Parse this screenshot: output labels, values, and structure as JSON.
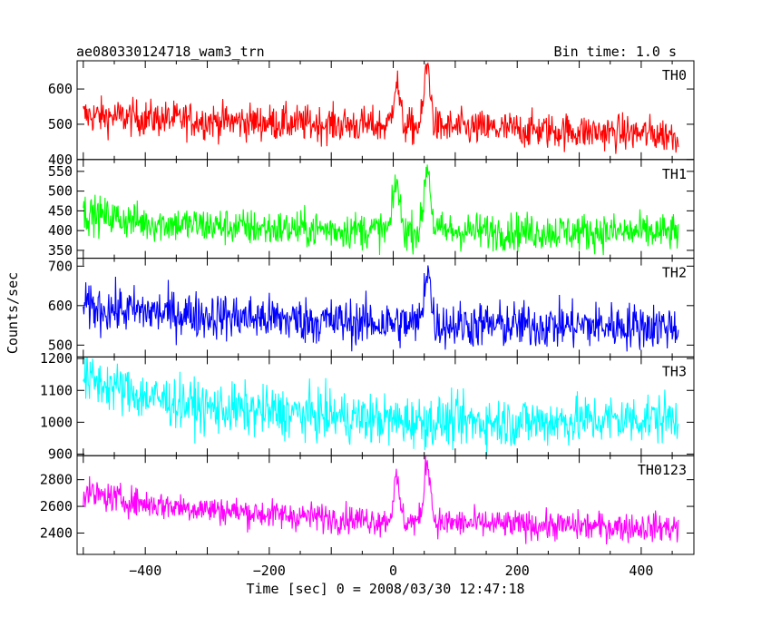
{
  "header": {
    "title": "ae080330124718_wam3_trn",
    "bin_time": "Bin time: 1.0 s"
  },
  "chart_data": {
    "type": "line",
    "xlabel": "Time [sec] 0 = 2008/03/30 12:47:18",
    "ylabel": "Counts/sec",
    "xlim": [
      -510,
      485
    ],
    "x_ticks": [
      -400,
      -200,
      0,
      200,
      400
    ],
    "x_tick_labels": [
      "−400",
      "−200",
      "0",
      "200",
      "400"
    ],
    "x_range": [
      -500,
      460
    ],
    "panels": [
      {
        "name": "TH0",
        "color": "#ff0000",
        "ylim": [
          400,
          680
        ],
        "ticks": [
          400,
          500,
          600
        ],
        "baseline": [
          [
            -500,
            525
          ],
          [
            -300,
            510
          ],
          [
            -100,
            500
          ],
          [
            0,
            495
          ],
          [
            200,
            485
          ],
          [
            460,
            470
          ]
        ],
        "noise": 26,
        "peaks": [
          [
            5,
            620
          ],
          [
            55,
            665
          ]
        ]
      },
      {
        "name": "TH1",
        "color": "#00ff00",
        "ylim": [
          330,
          580
        ],
        "ticks": [
          350,
          400,
          450,
          500,
          550
        ],
        "baseline": [
          [
            -500,
            445
          ],
          [
            -400,
            420
          ],
          [
            -200,
            405
          ],
          [
            0,
            400
          ],
          [
            200,
            398
          ],
          [
            460,
            395
          ]
        ],
        "noise": 24,
        "peaks": [
          [
            5,
            525
          ],
          [
            55,
            565
          ]
        ]
      },
      {
        "name": "TH2",
        "color": "#0000ff",
        "ylim": [
          470,
          720
        ],
        "ticks": [
          500,
          600,
          700
        ],
        "baseline": [
          [
            -500,
            595
          ],
          [
            -300,
            575
          ],
          [
            -100,
            560
          ],
          [
            0,
            555
          ],
          [
            200,
            550
          ],
          [
            460,
            548
          ]
        ],
        "noise": 30,
        "peaks": [
          [
            55,
            700
          ]
        ]
      },
      {
        "name": "TH3",
        "color": "#00ffff",
        "ylim": [
          895,
          1205
        ],
        "ticks": [
          900,
          1000,
          1100,
          1200
        ],
        "baseline": [
          [
            -500,
            1140
          ],
          [
            -400,
            1080
          ],
          [
            -300,
            1045
          ],
          [
            -100,
            1020
          ],
          [
            0,
            1005
          ],
          [
            200,
            1000
          ],
          [
            460,
            1015
          ]
        ],
        "noise": 40,
        "peaks": []
      },
      {
        "name": "TH0123",
        "color": "#ff00ff",
        "ylim": [
          2240,
          2980
        ],
        "ticks": [
          2400,
          2600,
          2800
        ],
        "baseline": [
          [
            -500,
            2700
          ],
          [
            -400,
            2620
          ],
          [
            -200,
            2540
          ],
          [
            0,
            2490
          ],
          [
            200,
            2460
          ],
          [
            460,
            2440
          ]
        ],
        "noise": 55,
        "peaks": [
          [
            5,
            2790
          ],
          [
            55,
            2950
          ]
        ]
      }
    ]
  }
}
